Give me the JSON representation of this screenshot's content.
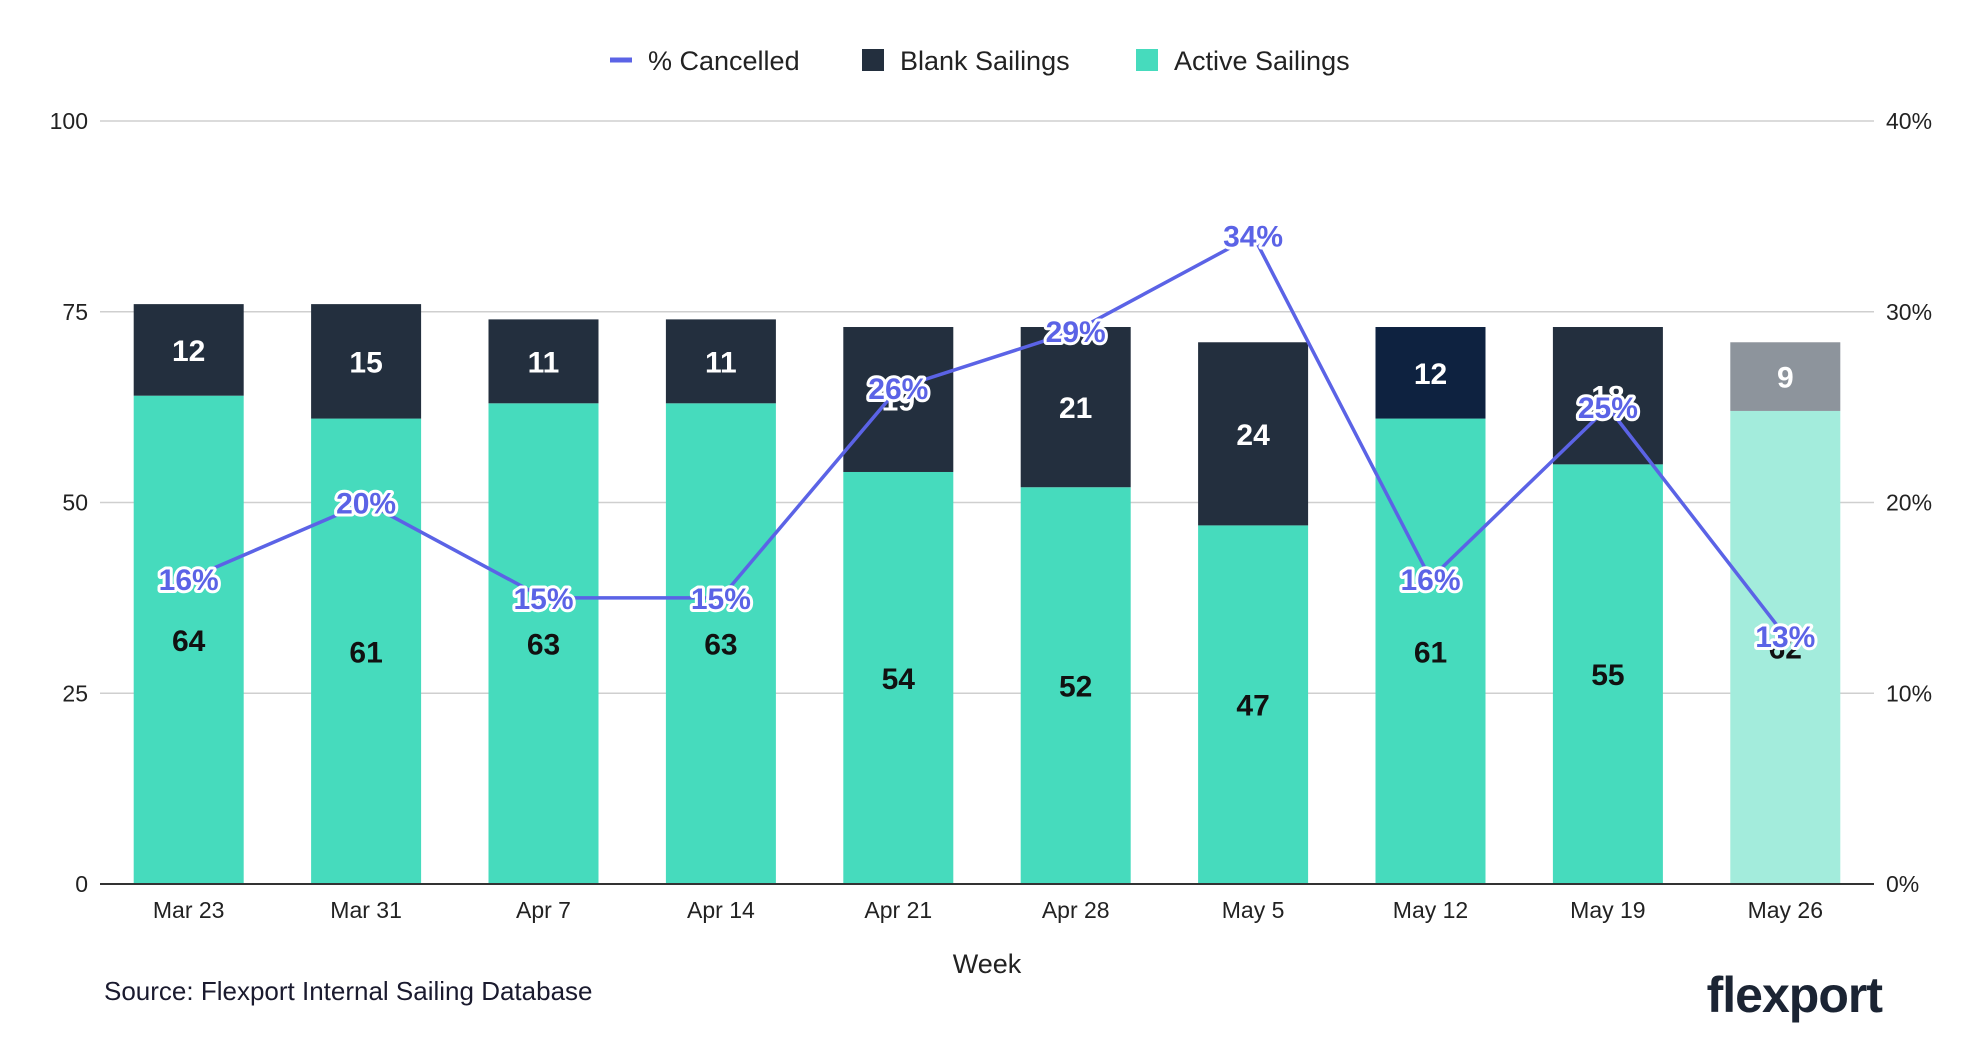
{
  "chart_data": {
    "type": "bar",
    "stacked": true,
    "title": "",
    "categories": [
      "Mar 23",
      "Mar 31",
      "Apr 7",
      "Apr 14",
      "Apr 21",
      "Apr 28",
      "May 5",
      "May 12",
      "May 19",
      "May 26"
    ],
    "series": [
      {
        "name": "Active Sailings",
        "type": "bar",
        "axis": "left",
        "color": "#46dbbd",
        "values": [
          64,
          61,
          63,
          63,
          54,
          52,
          47,
          61,
          55,
          62
        ]
      },
      {
        "name": "Blank Sailings",
        "type": "bar",
        "axis": "left",
        "color": "#232f3e",
        "values": [
          12,
          15,
          11,
          11,
          19,
          21,
          24,
          12,
          18,
          9
        ]
      },
      {
        "name": "% Cancelled",
        "type": "line",
        "axis": "right",
        "color": "#5b63e6",
        "values": [
          16,
          20,
          15,
          15,
          26,
          29,
          34,
          16,
          25,
          13
        ],
        "labels": [
          "16%",
          "20%",
          "15%",
          "15%",
          "26%",
          "29%",
          "34%",
          "16%",
          "25%",
          "13%"
        ]
      }
    ],
    "highlight": {
      "May 12": {
        "blank_color": "#0e2240"
      },
      "May 26": {
        "active_color": "#a3ecdc",
        "blank_color": "#8d949c"
      }
    },
    "xlabel": "Week",
    "ylabel": "",
    "y2label": "",
    "ylim": [
      0,
      100
    ],
    "y2lim": [
      0,
      40
    ],
    "y_ticks": [
      0,
      25,
      50,
      75,
      100
    ],
    "y2_ticks": [
      "0%",
      "10%",
      "20%",
      "30%",
      "40%"
    ],
    "legend_position": "top-center",
    "grid": true
  },
  "legend_items": [
    {
      "name": "% Cancelled",
      "color": "#5b63e6",
      "marker": "line"
    },
    {
      "name": "Blank Sailings",
      "color": "#232f3e",
      "marker": "square"
    },
    {
      "name": "Active Sailings",
      "color": "#46dbbd",
      "marker": "square"
    }
  ],
  "source_note": "Source: Flexport Internal Sailing Database",
  "brand": {
    "logo_text": "flexport"
  }
}
